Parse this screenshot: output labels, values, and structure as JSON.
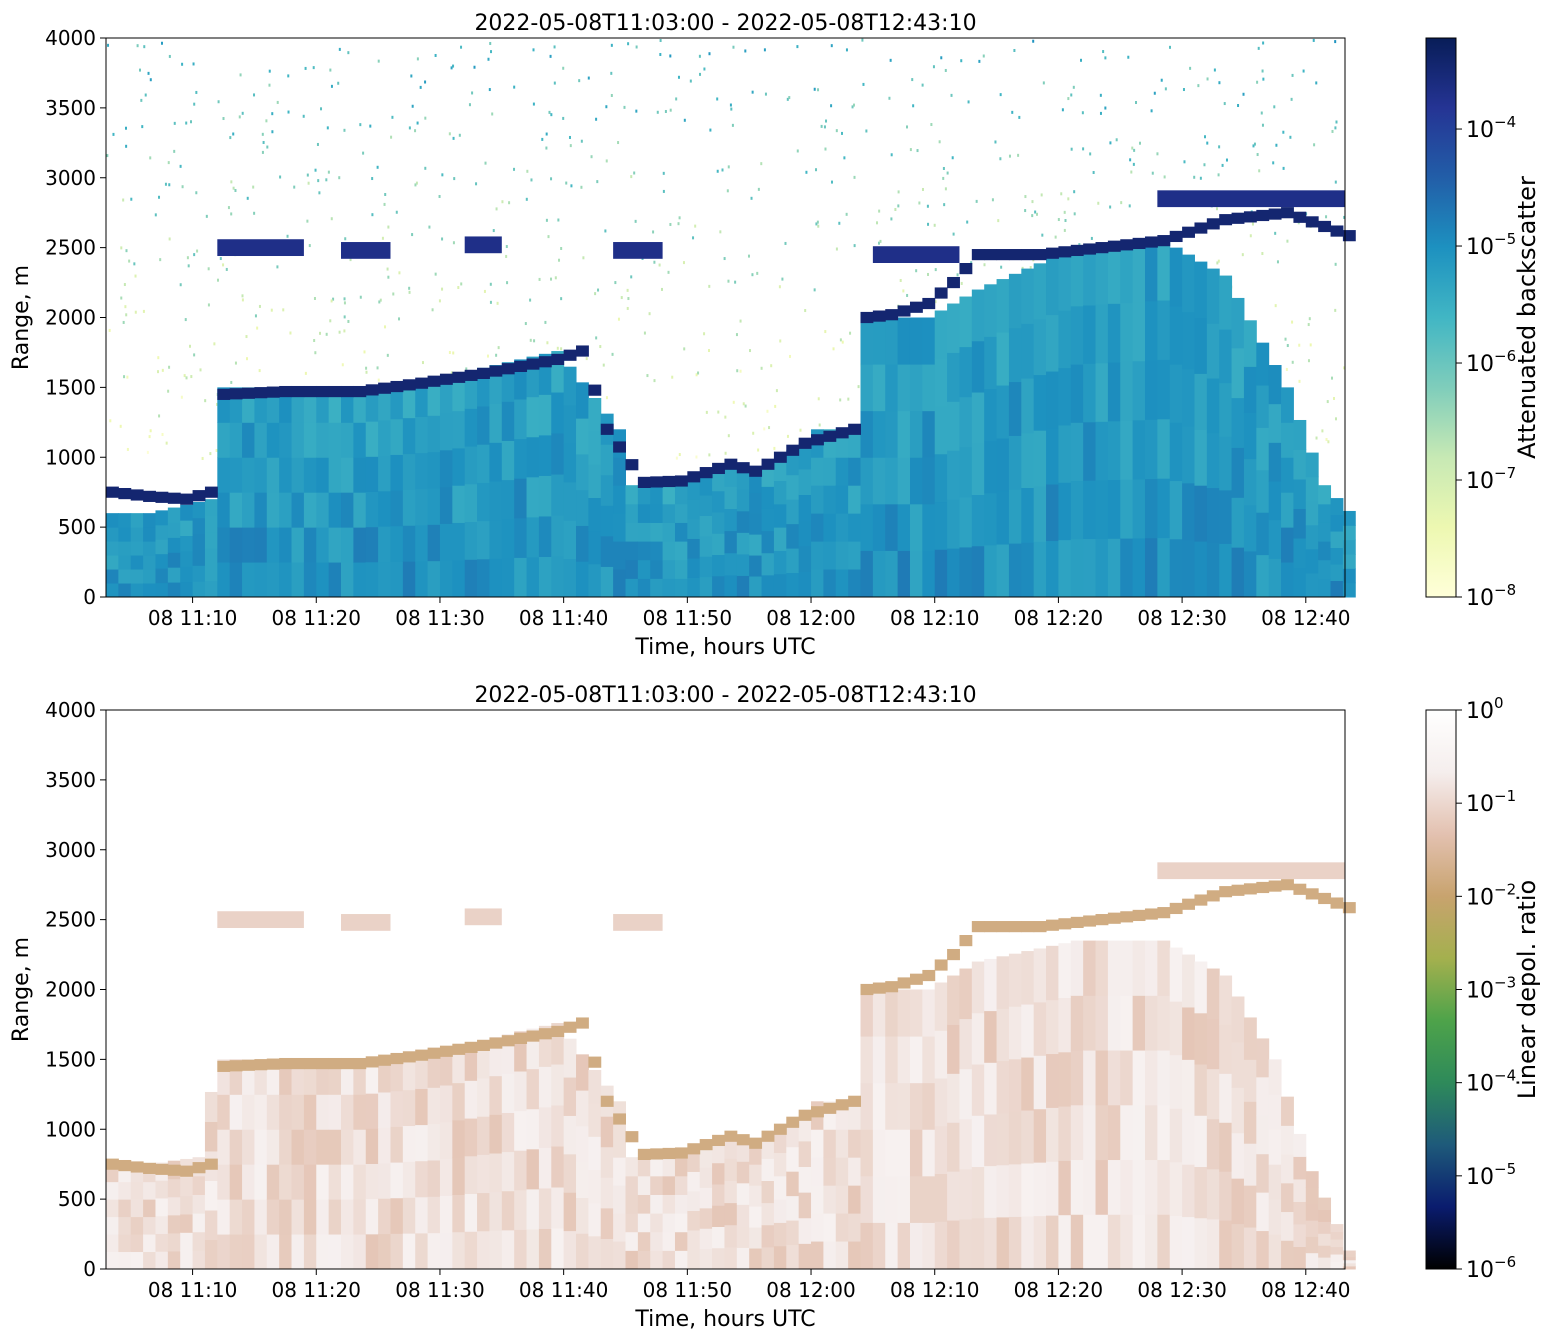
{
  "chart_data": [
    {
      "type": "heatmap",
      "title": "2022-05-08T11:03:00 - 2022-05-08T12:43:10",
      "xlabel": "Time, hours UTC",
      "ylabel": "Range, m",
      "x_tick_labels": [
        "08 11:10",
        "08 11:20",
        "08 11:30",
        "08 11:40",
        "08 11:50",
        "08 12:00",
        "08 12:10",
        "08 12:20",
        "08 12:30",
        "08 12:40"
      ],
      "x_tick_minutes": [
        7,
        17,
        27,
        37,
        47,
        57,
        67,
        77,
        87,
        97
      ],
      "x_range_minutes": [
        0,
        100.17
      ],
      "ylim": [
        0,
        4000
      ],
      "y_ticks": [
        0,
        500,
        1000,
        1500,
        2000,
        2500,
        3000,
        3500,
        4000
      ],
      "colorbar": {
        "label": "Attenuated backscatter",
        "scale": "log",
        "range": [
          1e-08,
          0.0006
        ],
        "ticks": [
          {
            "v": 1e-08,
            "label": "10",
            "exp": "−8"
          },
          {
            "v": 1e-07,
            "label": "10",
            "exp": "−7"
          },
          {
            "v": 1e-06,
            "label": "10",
            "exp": "−6"
          },
          {
            "v": 1e-05,
            "label": "10",
            "exp": "−5"
          },
          {
            "v": 0.0001,
            "label": "10",
            "exp": "−4"
          }
        ],
        "colors": [
          "#ffffd9",
          "#edf8b1",
          "#c7e9b4",
          "#7fcdbb",
          "#41b6c4",
          "#1d91c0",
          "#225ea8",
          "#253494",
          "#081d58"
        ]
      },
      "layers": [
        {
          "name": "noise",
          "ymin": 1000,
          "ymax": 4000,
          "xmin": 0,
          "xmax": 100.17,
          "level": 0.25
        },
        {
          "name": "boundary-layer",
          "top": [
            [
              0,
              600
            ],
            [
              3,
              600
            ],
            [
              8,
              700
            ],
            [
              8.5,
              1500
            ],
            [
              20,
              1500
            ],
            [
              26,
              1560
            ],
            [
              36,
              1760
            ],
            [
              41,
              1200
            ],
            [
              42,
              800
            ],
            [
              46,
              800
            ],
            [
              50,
              950
            ],
            [
              52,
              900
            ],
            [
              56,
              1100
            ],
            [
              57,
              1200
            ],
            [
              60,
              1200
            ],
            [
              60.5,
              2000
            ],
            [
              66,
              2000
            ],
            [
              70,
              2200
            ],
            [
              78,
              2500
            ],
            [
              85,
              2550
            ],
            [
              90,
              2300
            ],
            [
              95,
              1500
            ],
            [
              98,
              800
            ],
            [
              100.17,
              600
            ]
          ],
          "level": 0.62
        },
        {
          "name": "cloud-base",
          "pts": [
            [
              0,
              750
            ],
            [
              3,
              720
            ],
            [
              6,
              700
            ],
            [
              8,
              750
            ],
            [
              9,
              1450
            ],
            [
              14,
              1470
            ],
            [
              20,
              1470
            ],
            [
              25,
              1530
            ],
            [
              30,
              1600
            ],
            [
              36,
              1700
            ],
            [
              38,
              1760
            ],
            [
              40,
              1200
            ],
            [
              43,
              820
            ],
            [
              46,
              830
            ],
            [
              50,
              950
            ],
            [
              52,
              900
            ],
            [
              56,
              1100
            ],
            [
              60,
              1200
            ],
            [
              61,
              2000
            ],
            [
              63,
              2020
            ],
            [
              66,
              2100
            ],
            [
              68,
              2250
            ],
            [
              70,
              2450
            ],
            [
              75,
              2450
            ],
            [
              80,
              2500
            ],
            [
              85,
              2550
            ],
            [
              90,
              2700
            ],
            [
              95,
              2750
            ],
            [
              100.17,
              2580
            ]
          ],
          "level": 0.95
        },
        {
          "name": "upper-cloud",
          "segments": [
            [
              9,
              16,
              2500
            ],
            [
              19,
              23,
              2480
            ],
            [
              29,
              32,
              2520
            ],
            [
              41,
              45,
              2480
            ],
            [
              62,
              69,
              2450
            ],
            [
              85,
              100.17,
              2850
            ]
          ],
          "level": 0.9
        }
      ]
    },
    {
      "type": "heatmap",
      "title": "2022-05-08T11:03:00 - 2022-05-08T12:43:10",
      "xlabel": "Time, hours UTC",
      "ylabel": "Range, m",
      "x_tick_labels": [
        "08 11:10",
        "08 11:20",
        "08 11:30",
        "08 11:40",
        "08 11:50",
        "08 12:00",
        "08 12:10",
        "08 12:20",
        "08 12:30",
        "08 12:40"
      ],
      "x_tick_minutes": [
        7,
        17,
        27,
        37,
        47,
        57,
        67,
        77,
        87,
        97
      ],
      "x_range_minutes": [
        0,
        100.17
      ],
      "ylim": [
        0,
        4000
      ],
      "y_ticks": [
        0,
        500,
        1000,
        1500,
        2000,
        2500,
        3000,
        3500,
        4000
      ],
      "colorbar": {
        "label": "Linear depol. ratio",
        "scale": "log",
        "range": [
          1e-06,
          1
        ],
        "ticks": [
          {
            "v": 1e-06,
            "label": "10",
            "exp": "−6"
          },
          {
            "v": 1e-05,
            "label": "10",
            "exp": "−5"
          },
          {
            "v": 0.0001,
            "label": "10",
            "exp": "−4"
          },
          {
            "v": 0.001,
            "label": "10",
            "exp": "−3"
          },
          {
            "v": 0.01,
            "label": "10",
            "exp": "−2"
          },
          {
            "v": 0.1,
            "label": "10",
            "exp": "−1"
          },
          {
            "v": 1,
            "label": "10",
            "exp": "0"
          }
        ],
        "colors": [
          "#000000",
          "#0a1c6e",
          "#1e5a7a",
          "#2e8a5a",
          "#4ea34a",
          "#a4b04e",
          "#c8a36e",
          "#e3c1b0",
          "#f5eeed",
          "#ffffff"
        ]
      },
      "layers": [
        {
          "name": "aerosol-depol",
          "top": [
            [
              0,
              750
            ],
            [
              3,
              750
            ],
            [
              7,
              800
            ],
            [
              8.5,
              1500
            ],
            [
              20,
              1500
            ],
            [
              26,
              1560
            ],
            [
              36,
              1760
            ],
            [
              41,
              1200
            ],
            [
              42,
              800
            ],
            [
              46,
              800
            ],
            [
              50,
              950
            ],
            [
              52,
              900
            ],
            [
              56,
              1100
            ],
            [
              57,
              1200
            ],
            [
              60,
              1200
            ],
            [
              60.5,
              2000
            ],
            [
              66,
              2000
            ],
            [
              70,
              2200
            ],
            [
              78,
              2350
            ],
            [
              85,
              2350
            ],
            [
              90,
              2100
            ],
            [
              94,
              1500
            ],
            [
              97,
              700
            ],
            [
              100.17,
              100
            ]
          ],
          "level": 0.85
        },
        {
          "name": "cloud-base-depol",
          "pts": [
            [
              0,
              750
            ],
            [
              3,
              720
            ],
            [
              6,
              700
            ],
            [
              8,
              750
            ],
            [
              9,
              1450
            ],
            [
              14,
              1470
            ],
            [
              20,
              1470
            ],
            [
              25,
              1530
            ],
            [
              30,
              1600
            ],
            [
              36,
              1700
            ],
            [
              38,
              1760
            ],
            [
              40,
              1200
            ],
            [
              43,
              820
            ],
            [
              46,
              830
            ],
            [
              50,
              950
            ],
            [
              52,
              900
            ],
            [
              56,
              1100
            ],
            [
              60,
              1200
            ],
            [
              61,
              2000
            ],
            [
              63,
              2020
            ],
            [
              66,
              2100
            ],
            [
              68,
              2250
            ],
            [
              70,
              2450
            ],
            [
              75,
              2450
            ],
            [
              80,
              2500
            ],
            [
              85,
              2550
            ],
            [
              90,
              2700
            ],
            [
              95,
              2750
            ],
            [
              100.17,
              2580
            ]
          ],
          "level": 0.7
        },
        {
          "name": "upper-cloud-depol",
          "segments": [
            [
              9,
              16,
              2500
            ],
            [
              19,
              23,
              2480
            ],
            [
              29,
              32,
              2520
            ],
            [
              41,
              45,
              2480
            ],
            [
              85,
              100.17,
              2850
            ]
          ],
          "level": 0.82
        }
      ]
    }
  ]
}
